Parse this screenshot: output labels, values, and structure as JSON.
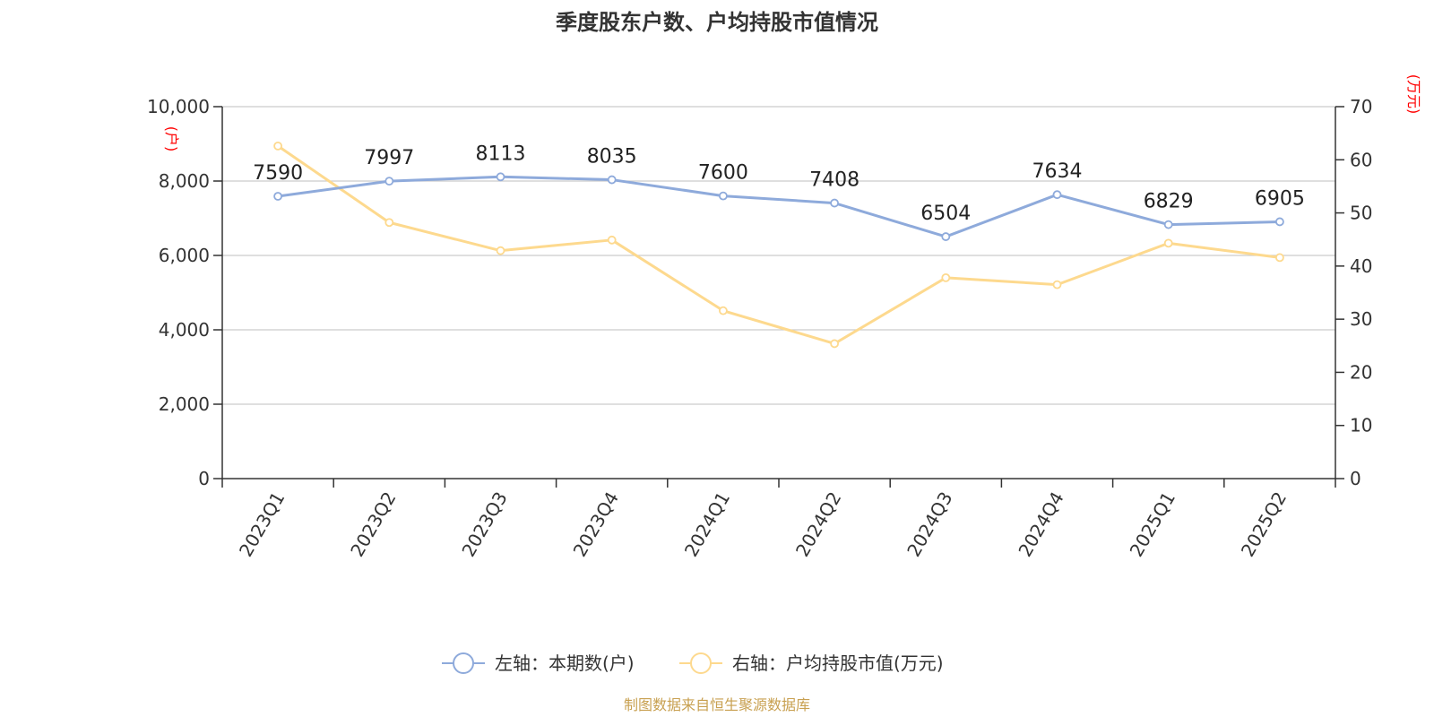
{
  "chart_data": {
    "type": "line",
    "title": "季度股东户数、户均持股市值情况",
    "categories": [
      "2023Q1",
      "2023Q2",
      "2023Q3",
      "2023Q4",
      "2024Q1",
      "2024Q2",
      "2024Q3",
      "2024Q4",
      "2025Q1",
      "2025Q2"
    ],
    "series": [
      {
        "name": "左轴：本期数(户)",
        "axis": "left",
        "color": "#8eaadb",
        "values": [
          7590,
          7997,
          8113,
          8035,
          7600,
          7408,
          6504,
          7634,
          6829,
          6905
        ],
        "labels": [
          "7590",
          "7997",
          "8113",
          "8035",
          "7600",
          "7408",
          "6504",
          "7634",
          "6829",
          "6905"
        ]
      },
      {
        "name": "右轴：户均持股市值(万元)",
        "axis": "right",
        "color": "#fdd98e",
        "values": [
          62.6,
          48.2,
          42.9,
          44.9,
          31.6,
          25.4,
          37.8,
          36.5,
          44.3,
          41.6
        ]
      }
    ],
    "left_axis": {
      "unit": "(户)",
      "ylim": [
        0,
        10000
      ],
      "ticks": [
        0,
        2000,
        4000,
        6000,
        8000,
        10000
      ],
      "tick_labels": [
        "0",
        "2,000",
        "4,000",
        "6,000",
        "8,000",
        "10,000"
      ]
    },
    "right_axis": {
      "unit": "(万元)",
      "ylim": [
        0,
        70
      ],
      "ticks": [
        0,
        10,
        20,
        30,
        40,
        50,
        60,
        70
      ],
      "tick_labels": [
        "0",
        "10",
        "20",
        "30",
        "40",
        "50",
        "60",
        "70"
      ]
    },
    "grid": true,
    "legend_position": "bottom"
  },
  "source_text": "制图数据来自恒生聚源数据库"
}
